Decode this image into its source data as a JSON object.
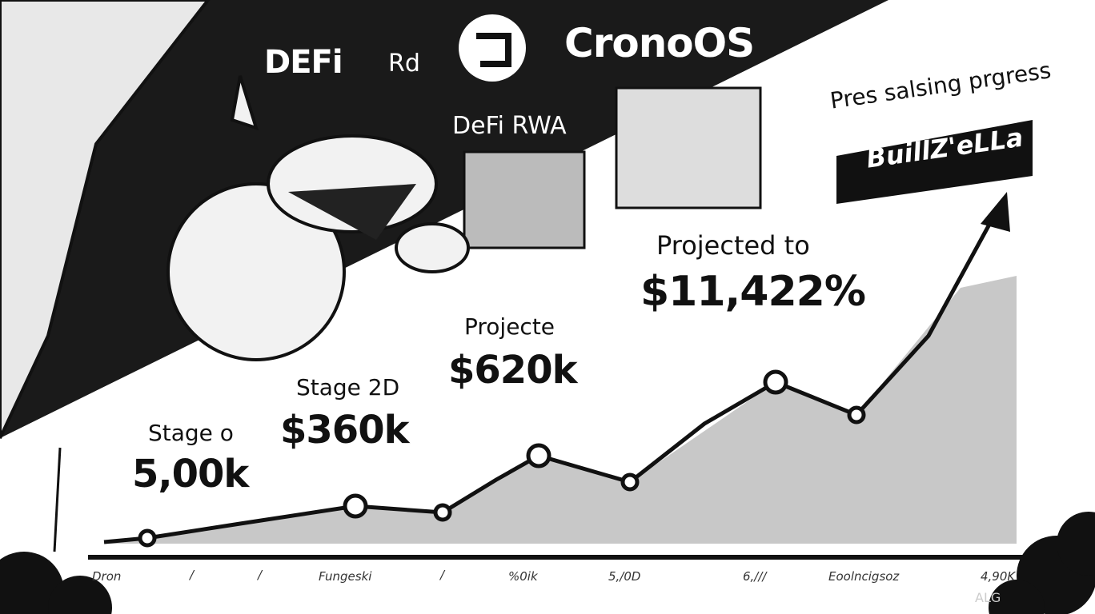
{
  "header": {
    "logo_left": "DEFi",
    "logo_mid": "Rd",
    "brand": "CronoOS",
    "subtitle": "DeFi RWA"
  },
  "banner": {
    "caption": "Pres salsing prgress",
    "name": "BuillZ'eLLa"
  },
  "milestones": [
    {
      "label": "Stage o",
      "value": "5,00k"
    },
    {
      "label": "Stage 2D",
      "value": "$360k"
    },
    {
      "label": "Projecte",
      "value": "$620k"
    },
    {
      "label": "Projected to",
      "value": "$11,422%"
    }
  ],
  "x_ticks": [
    "Dron",
    "/",
    "/",
    "Fungeski",
    "/",
    "%0ik",
    "5,/0D",
    "6,///",
    "Eoolncigsoz",
    "4,90K"
  ],
  "watermark": "ALG",
  "colors": {
    "ink": "#111111",
    "fill": "#c8c8c8",
    "paper": "#ffffff"
  }
}
